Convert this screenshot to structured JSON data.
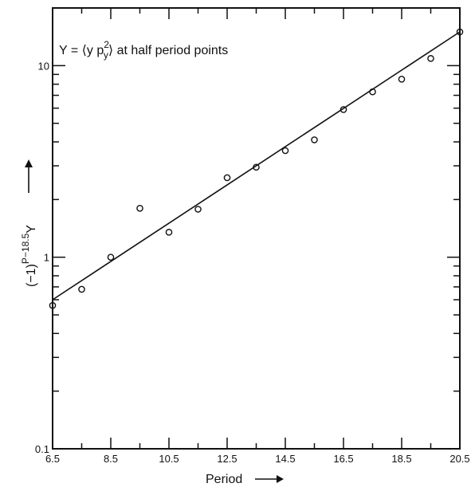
{
  "chart_data": {
    "type": "scatter",
    "title": "",
    "annotation": {
      "prefix": "Y = ",
      "expr": "⟨y p",
      "sup": "2",
      "sub": "y",
      "suffix": "⟩ at half period points"
    },
    "xlabel": "Period",
    "ylabel": {
      "base": "(−1)",
      "sup": "P−18.5",
      "tail": "Y"
    },
    "xlim": [
      6.5,
      20.5
    ],
    "ylim": [
      0.1,
      20
    ],
    "yscale": "log",
    "grid": false,
    "x_ticks": [
      6.5,
      8.5,
      10.5,
      12.5,
      14.5,
      16.5,
      18.5,
      20.5
    ],
    "x_tick_labels": [
      "6.5",
      "8.5",
      "10.5",
      "12.5",
      "14.5",
      "16.5",
      "18.5",
      "20.5"
    ],
    "y_tick_labels": [
      {
        "value": 0.1,
        "label": "0.1"
      },
      {
        "value": 1,
        "label": "1"
      },
      {
        "value": 10,
        "label": "10"
      }
    ],
    "series": [
      {
        "type": "scatter",
        "marker": "open-circle",
        "points": [
          {
            "x": 6.5,
            "y": 0.56
          },
          {
            "x": 7.5,
            "y": 0.68
          },
          {
            "x": 8.5,
            "y": 1.0
          },
          {
            "x": 9.5,
            "y": 1.8
          },
          {
            "x": 10.5,
            "y": 1.35
          },
          {
            "x": 11.5,
            "y": 1.78
          },
          {
            "x": 12.5,
            "y": 2.6
          },
          {
            "x": 13.5,
            "y": 2.95
          },
          {
            "x": 14.5,
            "y": 3.6
          },
          {
            "x": 15.5,
            "y": 4.1
          },
          {
            "x": 16.5,
            "y": 5.9
          },
          {
            "x": 17.5,
            "y": 7.3
          },
          {
            "x": 18.5,
            "y": 8.5
          },
          {
            "x": 19.5,
            "y": 10.9
          },
          {
            "x": 20.5,
            "y": 15.0
          }
        ]
      },
      {
        "type": "line",
        "style": "solid",
        "points": [
          {
            "x": 6.5,
            "y": 0.6
          },
          {
            "x": 20.5,
            "y": 15.0
          }
        ]
      }
    ]
  }
}
